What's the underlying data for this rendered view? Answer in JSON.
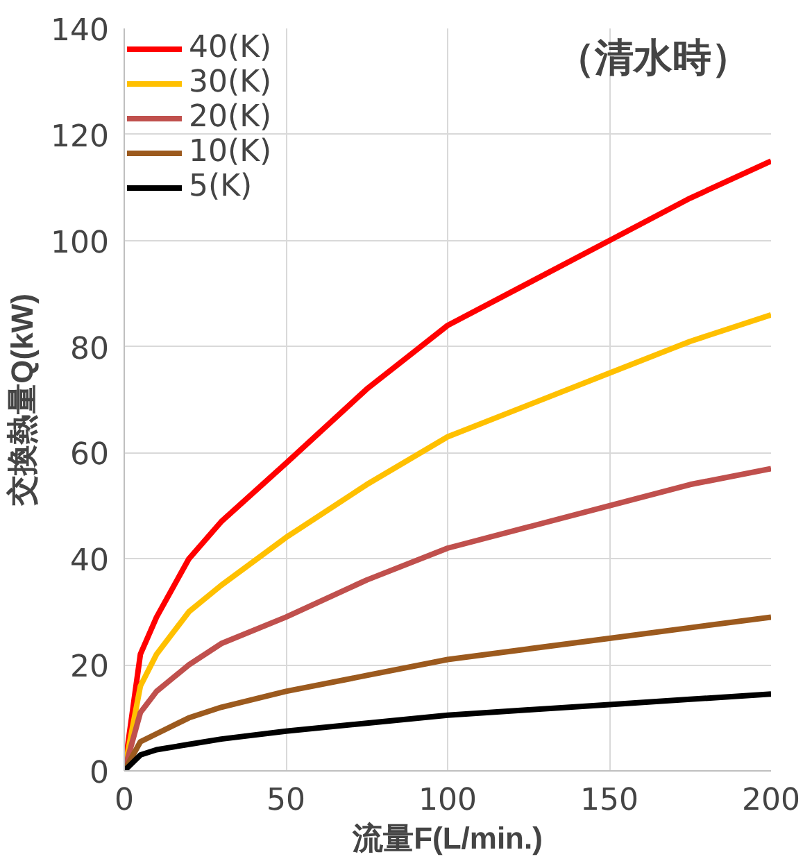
{
  "chart_data": {
    "type": "line",
    "xlabel": "流量F(L/min.)",
    "ylabel": "交換熱量Q(kW)",
    "annotations": [
      "（清水時）"
    ],
    "x": [
      0,
      5,
      10,
      20,
      30,
      50,
      75,
      100,
      125,
      150,
      175,
      200
    ],
    "series": [
      {
        "name": "40(K)",
        "color": "#ff0000",
        "values": [
          0,
          22,
          29,
          40,
          47,
          58,
          72,
          84,
          92,
          100,
          108,
          115
        ]
      },
      {
        "name": "30(K)",
        "color": "#ffc000",
        "values": [
          0,
          16,
          22,
          30,
          35,
          44,
          54,
          63,
          69,
          75,
          81,
          86
        ]
      },
      {
        "name": "20(K)",
        "color": "#c0504d",
        "values": [
          0,
          11,
          15,
          20,
          24,
          29,
          36,
          42,
          46,
          50,
          54,
          57
        ]
      },
      {
        "name": "10(K)",
        "color": "#9c5a1e",
        "values": [
          0,
          5.5,
          7,
          10,
          12,
          15,
          18,
          21,
          23,
          25,
          27,
          29
        ]
      },
      {
        "name": "5(K)",
        "color": "#000000",
        "values": [
          0,
          3,
          4,
          5,
          6,
          7.5,
          9,
          10.5,
          11.5,
          12.5,
          13.5,
          14.5
        ]
      }
    ],
    "xlim": [
      0,
      200
    ],
    "xticks": [
      0,
      50,
      100,
      150,
      200
    ],
    "ylim": [
      0,
      140
    ],
    "yticks": [
      0,
      20,
      40,
      60,
      80,
      100,
      120,
      140
    ],
    "grid": true,
    "legend": "top left",
    "marker": "none",
    "line_style": "solid"
  }
}
